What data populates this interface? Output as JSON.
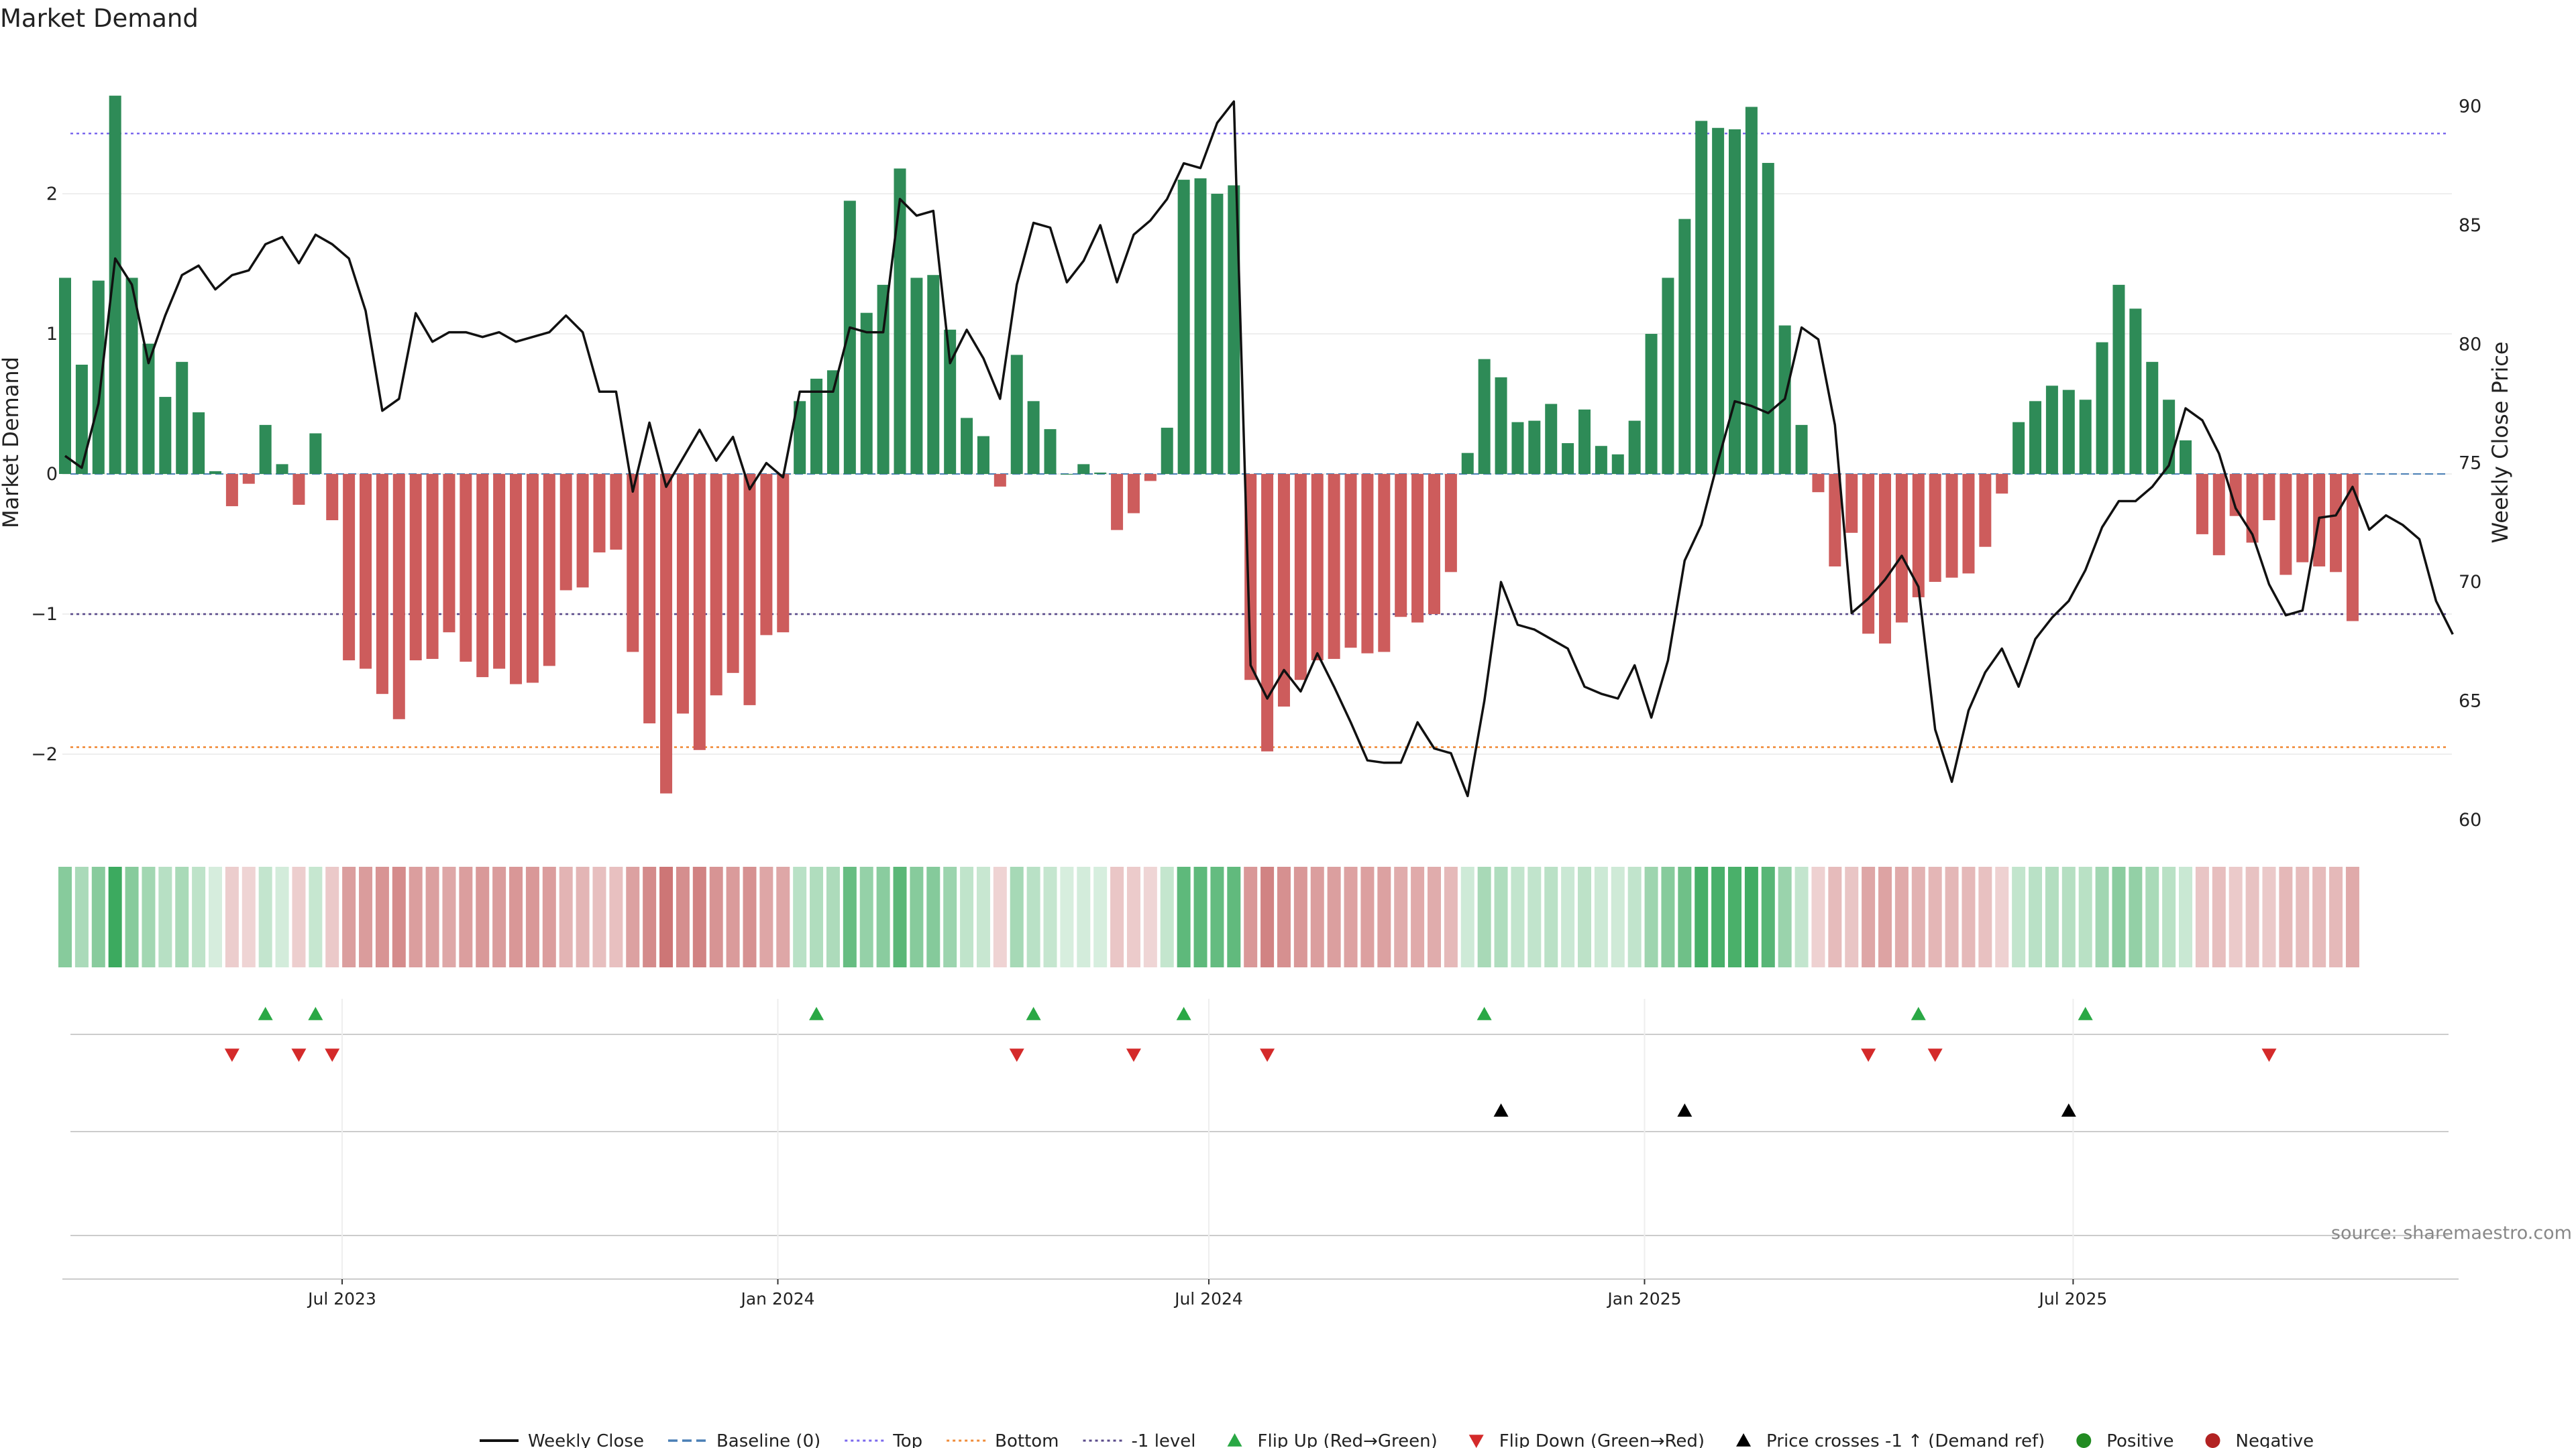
{
  "colors": {
    "positive": "#2e8b57",
    "negative": "#cd5c5c",
    "close_line": "#111111",
    "top_line": "#7b68ee",
    "bottom_line": "#f08c3a",
    "minus1_line": "#5a4a8a",
    "flip_up": "#2aa845",
    "flip_down": "#d42a2a",
    "cross": "#000000",
    "grid": "#eeeeee",
    "source": "#888888"
  },
  "chart_data": {
    "type": "bar",
    "title": "Market Demand",
    "ylabel_left": "Market Demand",
    "ylabel_right": "Weekly Close Price",
    "ylim_left": [
      -2.55,
      3.0
    ],
    "yticks_left": [
      -2,
      -1,
      0,
      1,
      2
    ],
    "ylim_right": [
      60,
      91
    ],
    "yticks_right": [
      60,
      65,
      70,
      75,
      80,
      85,
      90
    ],
    "date_range": [
      "2023-03-06",
      "2025-10-27"
    ],
    "xtick_labels": [
      {
        "date": "2023-07-01",
        "label": "Jul 2023"
      },
      {
        "date": "2024-01-01",
        "label": "Jan 2024"
      },
      {
        "date": "2024-07-01",
        "label": "Jul 2024"
      },
      {
        "date": "2025-01-01",
        "label": "Jan 2025"
      },
      {
        "date": "2025-07-01",
        "label": "Jul 2025"
      }
    ],
    "reference_lines": {
      "top": 2.43,
      "minus1": -1.0,
      "bottom": -1.95,
      "baseline": 0
    },
    "demand_values": [
      1.4,
      0.78,
      1.38,
      2.7,
      1.4,
      0.93,
      0.55,
      0.8,
      0.44,
      0.02,
      -0.23,
      -0.07,
      0.35,
      0.07,
      -0.22,
      0.29,
      -0.33,
      -1.33,
      -1.39,
      -1.57,
      -1.75,
      -1.33,
      -1.32,
      -1.13,
      -1.34,
      -1.45,
      -1.39,
      -1.5,
      -1.49,
      -1.37,
      -0.83,
      -0.81,
      -0.56,
      -0.54,
      -1.27,
      -1.78,
      -2.28,
      -1.71,
      -1.97,
      -1.58,
      -1.42,
      -1.65,
      -1.15,
      -1.13,
      0.52,
      0.68,
      0.74,
      1.95,
      1.15,
      1.35,
      2.18,
      1.4,
      1.42,
      1.03,
      0.4,
      0.27,
      -0.09,
      0.85,
      0.52,
      0.32,
      0.0,
      0.07,
      0.01,
      -0.4,
      -0.28,
      -0.05,
      0.33,
      2.1,
      2.11,
      2.0,
      2.06,
      -1.47,
      -1.98,
      -1.66,
      -1.47,
      -1.33,
      -1.32,
      -1.24,
      -1.28,
      -1.27,
      -1.02,
      -1.06,
      -1.0,
      -0.7,
      0.15,
      0.82,
      0.69,
      0.37,
      0.38,
      0.5,
      0.22,
      0.46,
      0.2,
      0.14,
      0.38,
      1.0,
      1.4,
      1.82,
      2.52,
      2.47,
      2.46,
      2.62,
      2.22,
      1.06,
      0.35,
      -0.13,
      -0.66,
      -0.42,
      -1.14,
      -1.21,
      -1.06,
      -0.88,
      -0.77,
      -0.74,
      -0.71,
      -0.52,
      -0.14,
      0.37,
      0.52,
      0.63,
      0.6,
      0.53,
      0.94,
      1.35,
      1.18,
      0.8,
      0.53,
      0.24,
      -0.43,
      -0.58,
      -0.3,
      -0.49,
      -0.33,
      -0.72,
      -0.63,
      -0.66,
      -0.7,
      -1.05
    ],
    "close_values": [
      75.3,
      74.8,
      77.5,
      83.6,
      82.5,
      79.2,
      81.2,
      82.9,
      83.3,
      82.3,
      82.9,
      83.1,
      84.2,
      84.5,
      83.4,
      84.6,
      84.2,
      83.6,
      81.4,
      77.2,
      77.7,
      81.3,
      80.1,
      80.5,
      80.5,
      80.3,
      80.5,
      80.1,
      80.3,
      80.5,
      81.2,
      80.5,
      78.0,
      78.0,
      73.8,
      76.7,
      74.0,
      75.2,
      76.4,
      75.1,
      76.1,
      73.9,
      75.0,
      74.4,
      78.0,
      78.0,
      78.0,
      80.7,
      80.5,
      80.5,
      86.1,
      85.4,
      85.6,
      79.2,
      80.6,
      79.4,
      77.7,
      82.5,
      85.1,
      84.9,
      82.6,
      83.5,
      85.0,
      82.6,
      84.6,
      85.2,
      86.1,
      87.6,
      87.4,
      89.3,
      90.2,
      66.5,
      65.1,
      66.3,
      65.4,
      67.0,
      65.6,
      64.1,
      62.5,
      62.4,
      62.4,
      64.1,
      63.0,
      62.8,
      61.0,
      65.0,
      70.0,
      68.2,
      68.0,
      67.6,
      67.2,
      65.6,
      65.3,
      65.1,
      66.5,
      64.3,
      66.7,
      70.9,
      72.4,
      75.1,
      77.6,
      77.4,
      77.1,
      77.7,
      80.7,
      80.2,
      76.6,
      68.7,
      69.3,
      70.1,
      71.1,
      69.8,
      63.8,
      61.6,
      64.6,
      66.2,
      67.2,
      65.6,
      67.6,
      68.5,
      69.2,
      70.5,
      72.3,
      73.4,
      73.4,
      74.0,
      74.9,
      77.3,
      76.8,
      75.4,
      73.1,
      72.0,
      69.9,
      68.6,
      68.8,
      72.7,
      72.8,
      74.0,
      72.2,
      72.8,
      72.4,
      71.8,
      69.2,
      67.8
    ],
    "flip_up_indices": [
      12,
      15,
      45,
      58,
      67,
      85,
      111,
      121
    ],
    "flip_down_indices": [
      10,
      14,
      16,
      57,
      64,
      72,
      108,
      112,
      132
    ],
    "cross_up_indices": [
      86,
      97,
      120
    ]
  },
  "legend": [
    {
      "label": "Weekly Close",
      "type": "line",
      "color": "#111111"
    },
    {
      "label": "Baseline (0)",
      "type": "dash",
      "color": "#4a7fb5"
    },
    {
      "label": "Top",
      "type": "dot",
      "color": "#7b68ee"
    },
    {
      "label": "Bottom",
      "type": "dot",
      "color": "#f08c3a"
    },
    {
      "label": "-1 level",
      "type": "dot",
      "color": "#5a4a8a"
    },
    {
      "label": "Flip Up (Red→Green)",
      "type": "tri-up",
      "color": "#2aa845"
    },
    {
      "label": "Flip Down (Green→Red)",
      "type": "tri-down",
      "color": "#d42a2a"
    },
    {
      "label": "Price crosses -1 ↑ (Demand ref)",
      "type": "tri-up",
      "color": "#000000"
    },
    {
      "label": "Positive",
      "type": "circle",
      "color": "#228b22"
    },
    {
      "label": "Negative",
      "type": "circle",
      "color": "#b22222"
    }
  ],
  "source_text": "source: sharemaestro.com"
}
